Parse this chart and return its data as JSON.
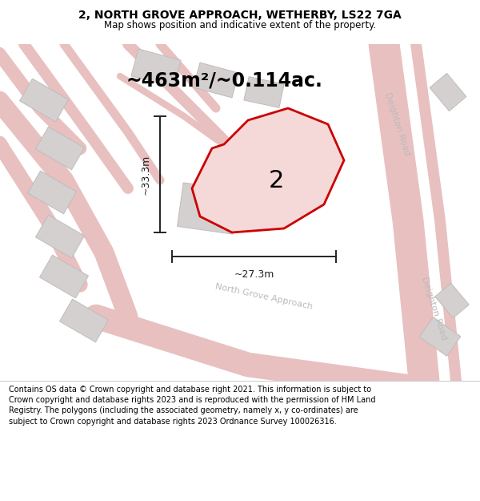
{
  "title_line1": "2, NORTH GROVE APPROACH, WETHERBY, LS22 7GA",
  "title_line2": "Map shows position and indicative extent of the property.",
  "area_text": "~463m²/~0.114ac.",
  "label_2": "2",
  "dim_width": "~27.3m",
  "dim_height": "~33.3m",
  "road_label1": "Deighton Road",
  "road_label2": "North Grove Approach",
  "footer_text": "Contains OS data © Crown copyright and database right 2021. This information is subject to Crown copyright and database rights 2023 and is reproduced with the permission of HM Land Registry. The polygons (including the associated geometry, namely x, y co-ordinates) are subject to Crown copyright and database rights 2023 Ordnance Survey 100026316.",
  "map_bg": "#f2efef",
  "road_color": "#e8c0c0",
  "building_color": "#d4d0d0",
  "building_edge": "#c0bcbc",
  "highlight_color": "#cc0000",
  "highlight_fill": "#f5d8d8",
  "dim_color": "#222222",
  "title_color": "#000000",
  "footer_color": "#000000",
  "road_label_color": "#bbbbbb",
  "figsize": [
    6.0,
    6.25
  ],
  "dpi": 100
}
